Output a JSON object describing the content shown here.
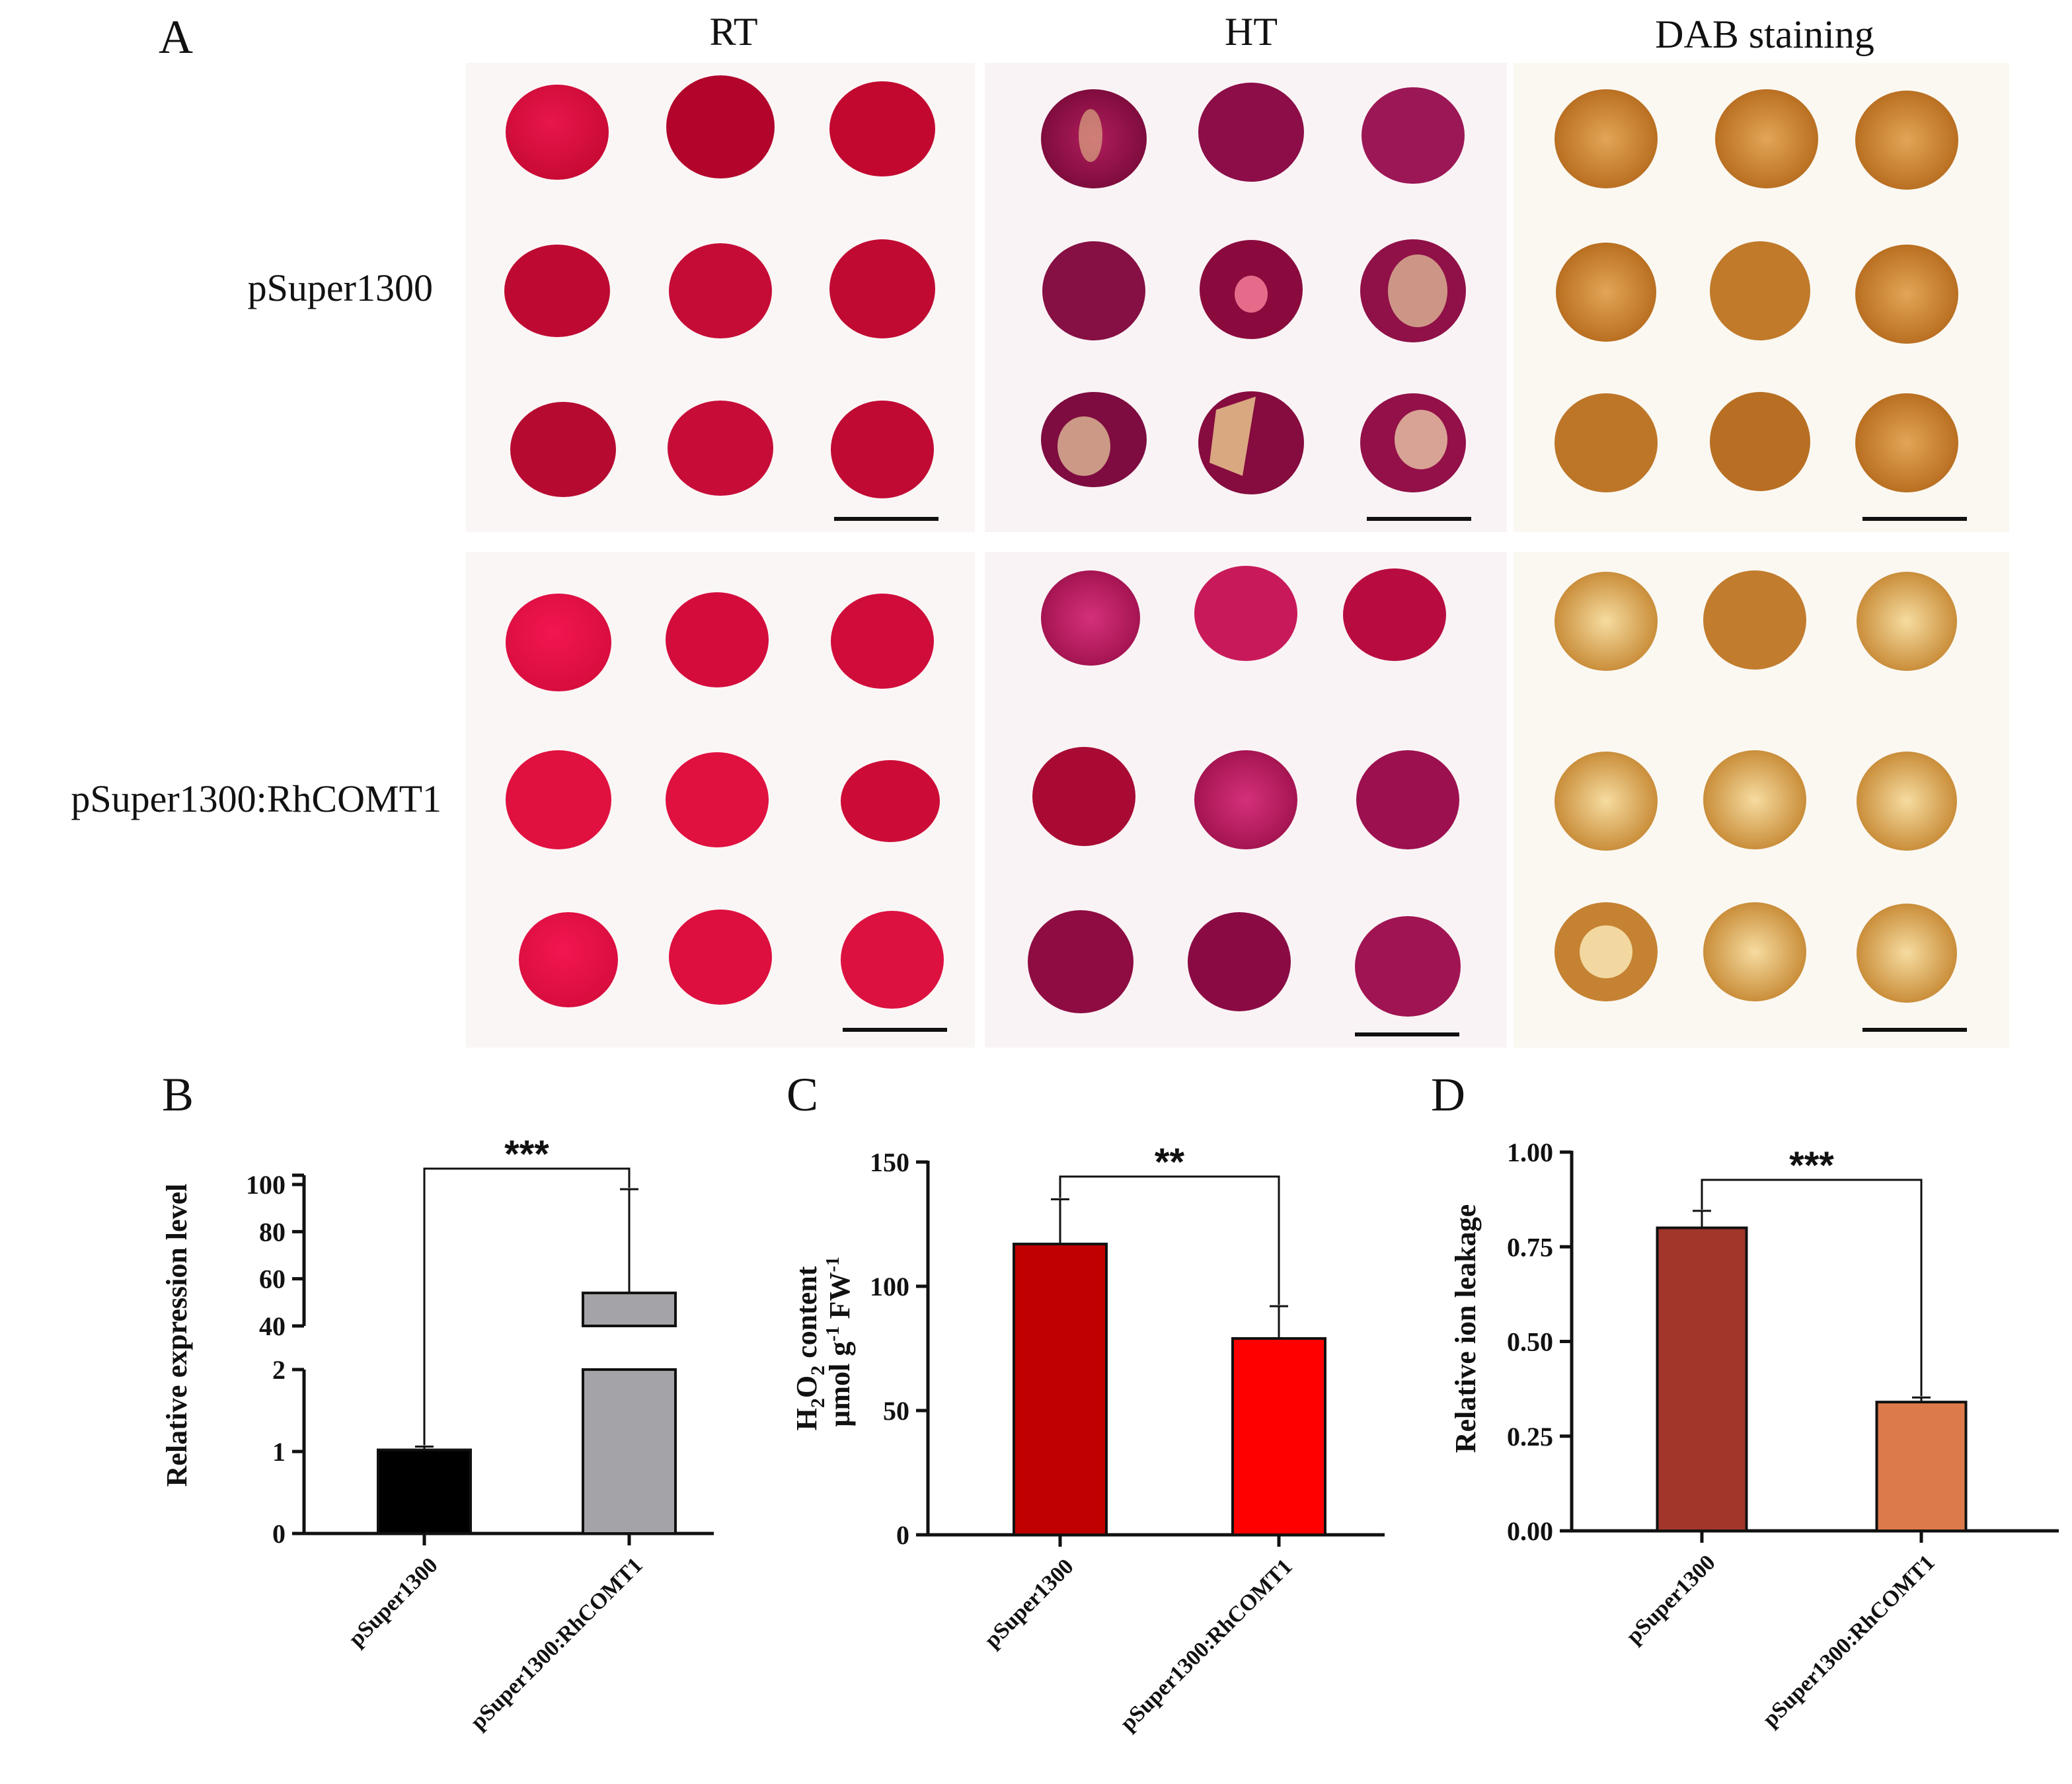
{
  "panel_a": {
    "label": "A",
    "columns": [
      "RT",
      "HT",
      "DAB staining"
    ],
    "rows": [
      "pSuper1300",
      "pSuper1300:RhCOMT1"
    ]
  },
  "chart_data": [
    {
      "panel": "B",
      "type": "bar",
      "categories": [
        "pSuper1300",
        "pSuper1300:RhCOMT1"
      ],
      "values": [
        1.02,
        54
      ],
      "error": [
        0.04,
        44
      ],
      "colors": [
        "#000000",
        "#a4a4a8"
      ],
      "ylabel": "Relative expression level",
      "axis_break": true,
      "yticks_lower": [
        "0",
        "1",
        "2"
      ],
      "yticks_upper": [
        "40",
        "60",
        "80",
        "100"
      ],
      "ylim_lower": [
        0,
        2
      ],
      "ylim_upper": [
        40,
        100
      ],
      "significance": "***"
    },
    {
      "panel": "C",
      "type": "bar",
      "categories": [
        "pSuper1300",
        "pSuper1300:RhCOMT1"
      ],
      "values": [
        117,
        79
      ],
      "error": [
        18,
        13
      ],
      "colors": [
        "#c00000",
        "#ff0000"
      ],
      "ylabel_line1": "H2O2 content",
      "ylabel_line2": "µmol g-1 FW-1",
      "ylim": [
        0,
        150
      ],
      "yticks": [
        "0",
        "50",
        "100",
        "150"
      ],
      "significance": "**"
    },
    {
      "panel": "D",
      "type": "bar",
      "categories": [
        "pSuper1300",
        "pSuper1300:RhCOMT1"
      ],
      "values": [
        0.8,
        0.34
      ],
      "error": [
        0.045,
        0.012
      ],
      "colors": [
        "#a3362b",
        "#dc7a4a"
      ],
      "ylabel": "Relative ion leakage",
      "ylim": [
        0,
        1
      ],
      "yticks": [
        "0.00",
        "0.25",
        "0.50",
        "0.75",
        "1.00"
      ],
      "significance": "***"
    }
  ]
}
